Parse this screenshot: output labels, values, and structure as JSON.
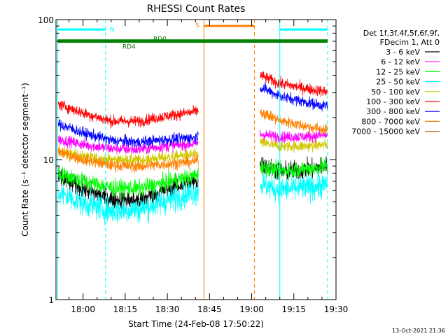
{
  "chart_data": {
    "type": "line",
    "title": "RHESSI Count Rates",
    "xlabel": "Start Time (24-Feb-08 17:50:22)",
    "ylabel": "Count Rate (s⁻¹ detector segment⁻¹)",
    "y_scale": "log",
    "ylim": [
      1,
      100
    ],
    "xlim": [
      "17:50:22",
      "19:30"
    ],
    "x_ticks": [
      "18:00",
      "18:15",
      "18:30",
      "18:45",
      "19:00",
      "19:15",
      "19:30"
    ],
    "y_ticks": [
      "1",
      "10",
      "100"
    ],
    "grid": false,
    "legend_position": "top-right",
    "legend_header": [
      "Det 1f,3f,4f,5f,6f,9f,",
      "FDecim 1, Att 0"
    ],
    "timestamp": "13-Oct-2021 21:36",
    "data_gap": [
      "18:41",
      "19:03"
    ],
    "series": [
      {
        "name": "3 - 6 keV",
        "color": "#000000",
        "x": [
          "17:51",
          "18:00",
          "18:10",
          "18:20",
          "18:30",
          "18:40",
          "19:03",
          "19:10",
          "19:20",
          "19:27"
        ],
        "y": [
          7.5,
          6.2,
          5.2,
          5.1,
          6.2,
          7.0,
          9.2,
          8.2,
          8.5,
          9.0
        ]
      },
      {
        "name": "6 - 12 keV",
        "color": "#ff00ff",
        "x": [
          "17:51",
          "18:00",
          "18:10",
          "18:20",
          "18:30",
          "18:40",
          "19:03",
          "19:10",
          "19:20",
          "19:27"
        ],
        "y": [
          14.0,
          12.8,
          12.0,
          11.8,
          12.5,
          13.0,
          15.2,
          14.5,
          14.6,
          15.0
        ]
      },
      {
        "name": "12 - 25 keV",
        "color": "#00ff00",
        "x": [
          "17:51",
          "18:00",
          "18:10",
          "18:20",
          "18:30",
          "18:40",
          "19:03",
          "19:10",
          "19:20",
          "19:27"
        ],
        "y": [
          8.0,
          7.0,
          6.3,
          6.2,
          6.9,
          7.7,
          8.9,
          8.3,
          8.6,
          9.0
        ]
      },
      {
        "name": "25 - 50 keV",
        "color": "#00ffff",
        "x": [
          "17:51",
          "18:00",
          "18:10",
          "18:20",
          "18:30",
          "18:40",
          "19:03",
          "19:10",
          "19:20",
          "19:27"
        ],
        "y": [
          5.8,
          4.9,
          4.3,
          4.4,
          5.1,
          5.9,
          6.7,
          6.1,
          6.3,
          6.6
        ]
      },
      {
        "name": "50 - 100 keV",
        "color": "#d2c800",
        "x": [
          "17:51",
          "18:00",
          "18:10",
          "18:20",
          "18:30",
          "18:40",
          "19:03",
          "19:10",
          "19:20",
          "19:27"
        ],
        "y": [
          11.5,
          10.5,
          10.0,
          9.9,
          10.4,
          10.9,
          13.2,
          12.4,
          12.5,
          12.8
        ]
      },
      {
        "name": "100 - 300 keV",
        "color": "#ff0000",
        "x": [
          "17:51",
          "18:00",
          "18:10",
          "18:20",
          "18:30",
          "18:40",
          "19:03",
          "19:10",
          "19:20",
          "19:27"
        ],
        "y": [
          25.0,
          21.5,
          18.8,
          18.8,
          20.5,
          22.0,
          40.0,
          35.0,
          32.0,
          30.5
        ]
      },
      {
        "name": "300 - 800 keV",
        "color": "#0000ff",
        "x": [
          "17:51",
          "18:00",
          "18:10",
          "18:20",
          "18:30",
          "18:40",
          "19:03",
          "19:10",
          "19:20",
          "19:27"
        ],
        "y": [
          18.0,
          15.5,
          13.7,
          13.3,
          13.9,
          14.4,
          33.0,
          28.5,
          25.5,
          24.0
        ]
      },
      {
        "name": "800 - 7000 keV",
        "color": "#ff8000",
        "x": [
          "17:51",
          "18:00",
          "18:10",
          "18:20",
          "18:30",
          "18:40",
          "19:03",
          "19:10",
          "19:20",
          "19:27"
        ],
        "y": [
          11.5,
          10.0,
          9.1,
          8.9,
          9.3,
          9.7,
          22.0,
          19.0,
          17.2,
          16.2
        ]
      },
      {
        "name": "7000 - 15000 keV",
        "color": "#a07800",
        "x": [],
        "y": []
      }
    ],
    "attenuator_lines": [
      {
        "time": "17:51",
        "color": "#00ffff",
        "style": "solid"
      },
      {
        "time": "18:08",
        "color": "#00ffff",
        "style": "dashed"
      },
      {
        "time": "19:10",
        "color": "#00ffff",
        "style": "solid"
      },
      {
        "time": "19:27",
        "color": "#00ffff",
        "style": "dashed"
      },
      {
        "time": "18:43",
        "color": "#ff8000",
        "style": "solid"
      },
      {
        "time": "19:01",
        "color": "#ff8000",
        "style": "dashed"
      }
    ],
    "flag_bars": [
      {
        "label": "N",
        "color": "#00ffff",
        "level": 85,
        "segments": [
          [
            "17:51",
            "18:08"
          ],
          [
            "19:10",
            "19:27"
          ]
        ]
      },
      {
        "label": "S",
        "color": "#ff8000",
        "level": 90,
        "segments": [
          [
            "18:43",
            "19:01"
          ]
        ]
      },
      {
        "label": "RD0",
        "color": "#008000",
        "level": 71,
        "segments": [
          [
            "17:51",
            "19:27"
          ]
        ]
      },
      {
        "label": "RD4",
        "color": "#008000",
        "level": 69.5,
        "segments": [
          [
            "17:51",
            "19:27"
          ]
        ]
      }
    ]
  }
}
